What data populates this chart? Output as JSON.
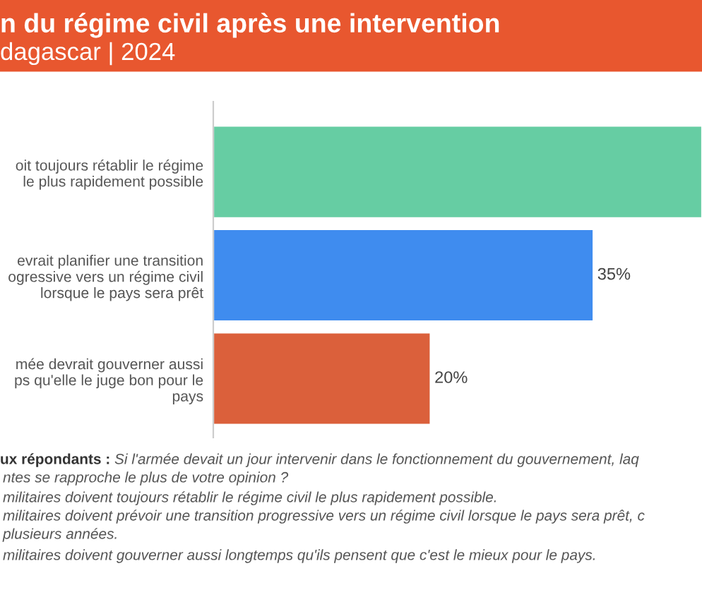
{
  "chart_data": {
    "type": "bar",
    "orientation": "horizontal",
    "title": "n du régime civil après une intervention",
    "subtitle": "dagascar | 2024",
    "categories": [
      "oit toujours rétablir le régime\nle plus rapidement possible",
      "evrait planifier une transition\nogressive vers un régime civil\nlorsque le pays sera prêt",
      "mée devrait gouverner aussi\nps qu'elle le juge bon pour le\npays"
    ],
    "values": [
      45,
      35,
      20
    ],
    "colors": [
      "#66cda3",
      "#3f8cef",
      "#db603b"
    ],
    "value_labels": [
      null,
      "35%",
      "20%"
    ],
    "xlim": [
      0,
      45
    ],
    "tick_labels": "y",
    "grid": false,
    "legend": false,
    "annotations": [
      "ux répondants :",
      "Si l'armée devait un jour intervenir dans le fonctionnement du gouvernement, laq",
      "ntes se rapproche le plus de votre opinion ?",
      "militaires doivent toujours rétablir le régime civil le plus rapidement possible.",
      "militaires doivent prévoir une transition progressive vers un régime civil lorsque le pays sera prêt, c",
      "plusieurs années.",
      "militaires doivent gouverner aussi longtemps qu'ils pensent que c'est le mieux pour le pays."
    ]
  }
}
